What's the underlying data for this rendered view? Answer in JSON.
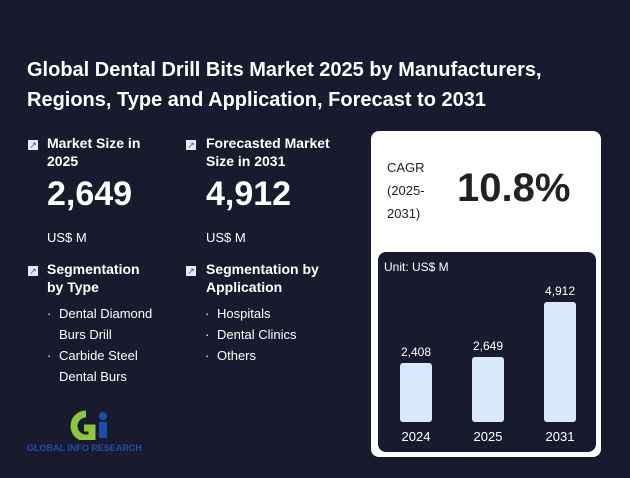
{
  "title": "Global Dental Drill Bits Market 2025 by Manufacturers, Regions, Type and Application, Forecast to 2031",
  "market_size": {
    "label": "Market Size in 2025",
    "value": "2,649",
    "unit": "US$ M"
  },
  "forecast": {
    "label": "Forecasted Market Size in 2031",
    "value": "4,912",
    "unit": "US$ M"
  },
  "seg_type": {
    "label": "Segmentation by Type",
    "items": [
      "Dental Diamond Burs Drill",
      "Carbide Steel Dental Burs"
    ]
  },
  "seg_app": {
    "label": "Segmentation by Application",
    "items": [
      "Hospitals",
      "Dental Clinics",
      "Others"
    ]
  },
  "cagr": {
    "label": "CAGR (2025-2031)",
    "value": "10.8%"
  },
  "logo": "GLOBAL INFO RESEARCH",
  "chart_data": {
    "type": "bar",
    "title": "Unit: US$ M",
    "categories": [
      "2024",
      "2025",
      "2031"
    ],
    "values": [
      2408,
      2649,
      4912
    ],
    "labels": [
      "2,408",
      "2,649",
      "4,912"
    ]
  }
}
